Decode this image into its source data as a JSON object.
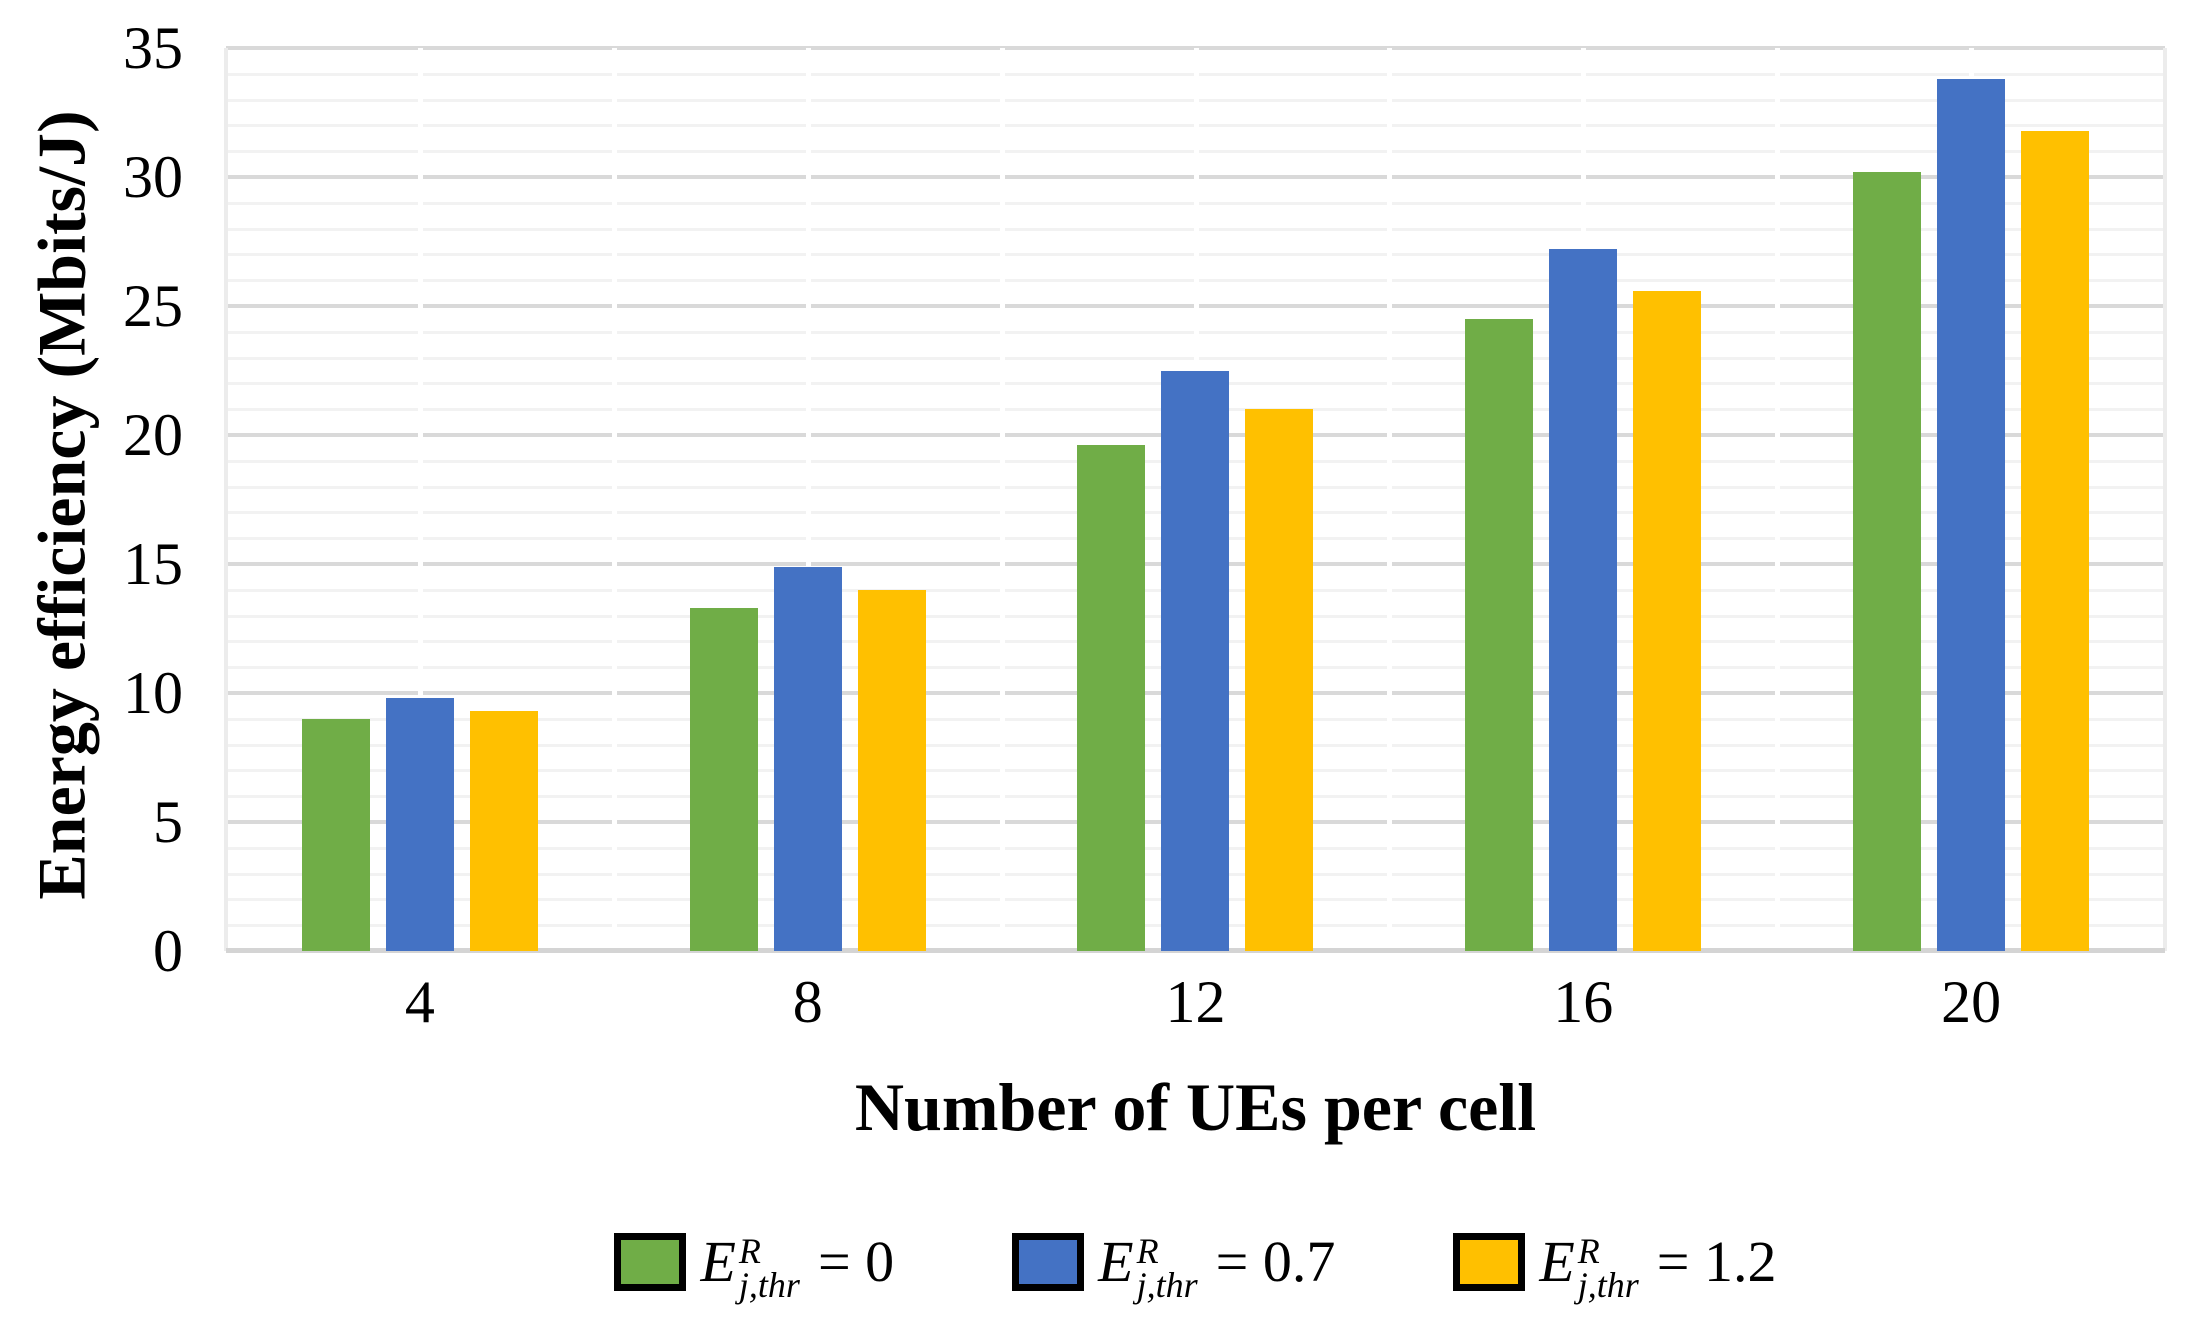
{
  "chart_data": {
    "type": "bar",
    "title": "",
    "xlabel": "Number of UEs per cell",
    "ylabel": "Energy efficiency (Mbits/J)",
    "categories": [
      "4",
      "8",
      "12",
      "16",
      "20"
    ],
    "series": [
      {
        "name": "E^R_j,thr = 0",
        "color": "#70AD47",
        "values": [
          9.0,
          13.3,
          19.6,
          24.5,
          30.2
        ]
      },
      {
        "name": "E^R_j,thr = 0.7",
        "color": "#4472C4",
        "values": [
          9.8,
          14.9,
          22.5,
          27.2,
          33.8
        ]
      },
      {
        "name": "E^R_j,thr = 1.2",
        "color": "#FFC000",
        "values": [
          9.3,
          14.0,
          21.0,
          25.6,
          31.8
        ]
      }
    ],
    "ylim": [
      0,
      35
    ],
    "y_major_step": 5,
    "y_minor_step": 1,
    "y_tick_labels": [
      "0",
      "5",
      "10",
      "15",
      "20",
      "25",
      "30",
      "35"
    ],
    "grid": "horizontal major and minor gridlines",
    "legend_position": "bottom"
  },
  "legend": {
    "items": [
      {
        "base": "E",
        "sup": "R",
        "sub": "j,thr",
        "eq": "= 0",
        "color": "#70AD47"
      },
      {
        "base": "E",
        "sup": "R",
        "sub": "j,thr",
        "eq": "= 0.7",
        "color": "#4472C4"
      },
      {
        "base": "E",
        "sup": "R",
        "sub": "j,thr",
        "eq": "= 1.2",
        "color": "#FFC000"
      }
    ]
  },
  "colors": {
    "series_green": "#70AD47",
    "series_blue": "#4472C4",
    "series_yellow": "#FFC000",
    "gridline_minor": "#F2F2F2",
    "gridline_major": "#D9D9D9",
    "axis_line": "#D4D4D4",
    "vertical_separator": "#FFFFFF",
    "plot_edge": "#ECECEC",
    "background": "#FFFFFF",
    "text": "#000000"
  }
}
